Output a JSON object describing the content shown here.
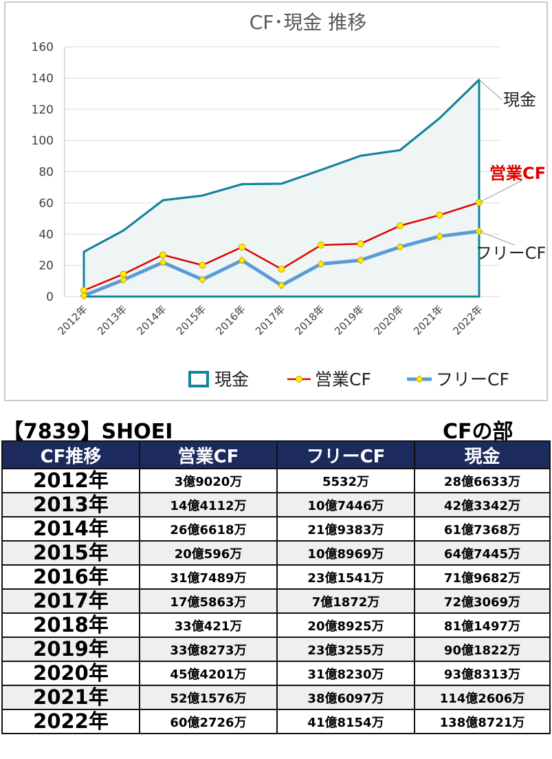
{
  "chart_data": {
    "type": "line",
    "title": "CF･現金 推移",
    "categories": [
      "2012年",
      "2013年",
      "2014年",
      "2015年",
      "2016年",
      "2017年",
      "2018年",
      "2019年",
      "2020年",
      "2021年",
      "2022年"
    ],
    "ylim": [
      0,
      160
    ],
    "yticks": [
      0,
      20,
      40,
      60,
      80,
      100,
      120,
      140,
      160
    ],
    "grid": true,
    "legend_position": "bottom",
    "series": [
      {
        "name": "現金",
        "color": "#14829a",
        "style": "area-line",
        "values": [
          28.7,
          42.3,
          61.7,
          64.7,
          72.0,
          72.3,
          81.1,
          90.2,
          93.8,
          114.3,
          138.9
        ]
      },
      {
        "name": "営業CF",
        "color": "#e00000",
        "style": "line-markers",
        "values": [
          3.9,
          14.4,
          26.7,
          20.1,
          31.7,
          17.6,
          33.0,
          33.8,
          45.4,
          52.2,
          60.3
        ]
      },
      {
        "name": "フリーCF",
        "color": "#5b9bd5",
        "style": "line-markers",
        "values": [
          0.6,
          10.7,
          21.9,
          10.9,
          23.2,
          7.2,
          20.9,
          23.3,
          31.8,
          38.6,
          41.8
        ]
      }
    ],
    "annotations": [
      "現金",
      "営業CF",
      "フリーCF"
    ]
  },
  "header": {
    "company": "【7839】SHOEI",
    "section": "CFの部"
  },
  "table": {
    "columns": [
      "CF推移",
      "営業CF",
      "フリーCF",
      "現金"
    ],
    "rows": [
      [
        "2012年",
        "3億9020万",
        "5532万",
        "28億6633万"
      ],
      [
        "2013年",
        "14億4112万",
        "10億7446万",
        "42億3342万"
      ],
      [
        "2014年",
        "26億6618万",
        "21億9383万",
        "61億7368万"
      ],
      [
        "2015年",
        "20億596万",
        "10億8969万",
        "64億7445万"
      ],
      [
        "2016年",
        "31億7489万",
        "23億1541万",
        "71億9682万"
      ],
      [
        "2017年",
        "17億5863万",
        "7億1872万",
        "72億3069万"
      ],
      [
        "2018年",
        "33億421万",
        "20億8925万",
        "81億1497万"
      ],
      [
        "2019年",
        "33億8273万",
        "23億3255万",
        "90億1822万"
      ],
      [
        "2020年",
        "45億4201万",
        "31億8230万",
        "93億8313万"
      ],
      [
        "2021年",
        "52億1576万",
        "38億6097万",
        "114億2606万"
      ],
      [
        "2022年",
        "60億2726万",
        "41億8154万",
        "138億8721万"
      ]
    ]
  }
}
